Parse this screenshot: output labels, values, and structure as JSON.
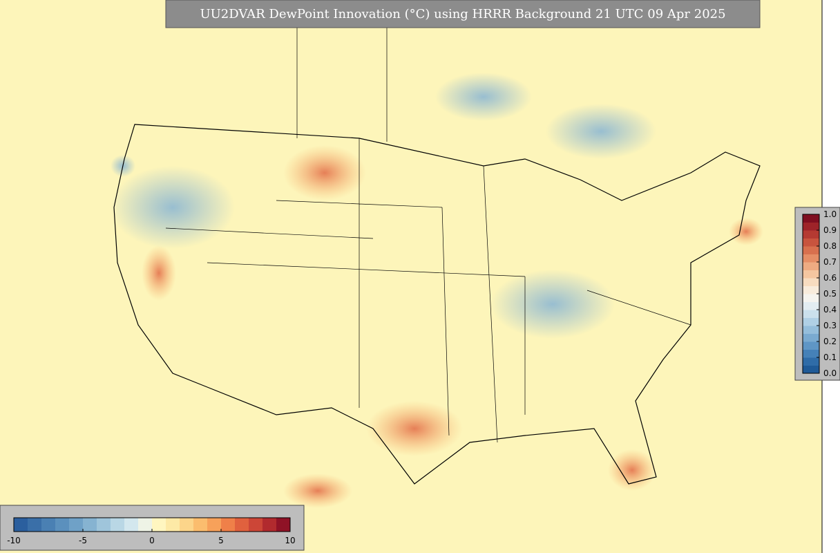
{
  "title": "UU2DVAR DewPoint Innovation (°C) using HRRR Background 21 UTC 09 Apr 2025",
  "colorbar_horizontal": {
    "range": [
      -10,
      10
    ],
    "ticks": [
      -10,
      -5,
      0,
      5,
      10
    ],
    "colors": [
      "#2b5f9e",
      "#3a6fa8",
      "#4a80b3",
      "#5b90bd",
      "#6fa1c7",
      "#86b3d1",
      "#9fc5db",
      "#b9d7e5",
      "#d3e7ee",
      "#eef3e6",
      "#fff6c0",
      "#fde9a6",
      "#fcd58a",
      "#fbbd6e",
      "#f7a15a",
      "#ef8049",
      "#e0613e",
      "#cc4637",
      "#b12a2e",
      "#8f1226"
    ]
  },
  "colorbar_vertical": {
    "range": [
      0,
      1
    ],
    "ticks": [
      {
        "value": 0,
        "label": "0.0"
      },
      {
        "value": 0.1,
        "label": "0.1"
      },
      {
        "value": 0.2,
        "label": "0.2"
      },
      {
        "value": 0.3,
        "label": "0.3"
      },
      {
        "value": 0.4,
        "label": "0.4"
      },
      {
        "value": 0.5,
        "label": "0.5"
      },
      {
        "value": 0.6,
        "label": "0.6"
      },
      {
        "value": 0.7,
        "label": "0.7"
      },
      {
        "value": 0.8,
        "label": "0.8"
      },
      {
        "value": 0.9,
        "label": "0.9"
      },
      {
        "value": 1,
        "label": "1.0"
      }
    ],
    "colors": [
      "#1f5a97",
      "#2f6ca8",
      "#4581b8",
      "#5f96c5",
      "#7aaad0",
      "#95bedb",
      "#b0d0e5",
      "#cbe0ec",
      "#e3edf1",
      "#f5f4ef",
      "#f8ecdc",
      "#f7dcc0",
      "#f4c6a0",
      "#eeab82",
      "#e58e66",
      "#d8704e",
      "#c8543e",
      "#b53a32",
      "#9e2329",
      "#7f0e20"
    ]
  }
}
